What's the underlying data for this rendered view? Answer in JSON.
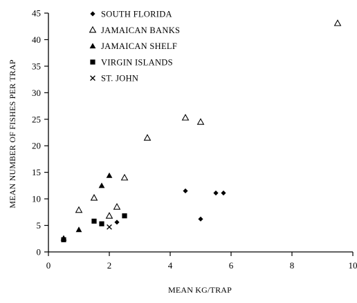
{
  "chart_data": {
    "type": "scatter",
    "title": "",
    "xlabel": "MEAN KG/TRAP",
    "ylabel": "MEAN NUMBER OF FISHES PER TRAP",
    "xlim": [
      0,
      10
    ],
    "ylim": [
      0,
      45
    ],
    "x_ticks": [
      "0",
      "2",
      "4",
      "6",
      "8",
      "10"
    ],
    "y_ticks": [
      "0",
      "5",
      "10",
      "15",
      "20",
      "25",
      "30",
      "35",
      "40",
      "45"
    ],
    "grid": false,
    "legend_position": "top-left",
    "series": [
      {
        "name": "SOUTH FLORIDA",
        "marker": "diamond-filled",
        "points": [
          [
            2.25,
            5.6
          ],
          [
            4.5,
            11.5
          ],
          [
            5.0,
            6.2
          ],
          [
            5.5,
            11.1
          ],
          [
            5.75,
            11.1
          ]
        ]
      },
      {
        "name": "JAMAICAN BANKS",
        "marker": "triangle-open",
        "points": [
          [
            1.0,
            7.9
          ],
          [
            1.5,
            10.2
          ],
          [
            2.0,
            6.8
          ],
          [
            2.25,
            8.5
          ],
          [
            2.5,
            14.0
          ],
          [
            3.25,
            21.5
          ],
          [
            4.5,
            25.3
          ],
          [
            5.0,
            24.5
          ],
          [
            9.5,
            43.1
          ]
        ]
      },
      {
        "name": "JAMAICAN SHELF",
        "marker": "triangle-filled",
        "points": [
          [
            0.5,
            2.6
          ],
          [
            1.0,
            4.2
          ],
          [
            1.75,
            12.5
          ],
          [
            2.0,
            14.4
          ]
        ]
      },
      {
        "name": "VIRGIN ISLANDS",
        "marker": "square-filled",
        "points": [
          [
            0.5,
            2.3
          ],
          [
            1.5,
            5.8
          ],
          [
            1.75,
            5.3
          ],
          [
            2.5,
            6.8
          ]
        ]
      },
      {
        "name": "ST. JOHN",
        "marker": "x",
        "points": [
          [
            2.0,
            4.7
          ]
        ]
      }
    ]
  }
}
